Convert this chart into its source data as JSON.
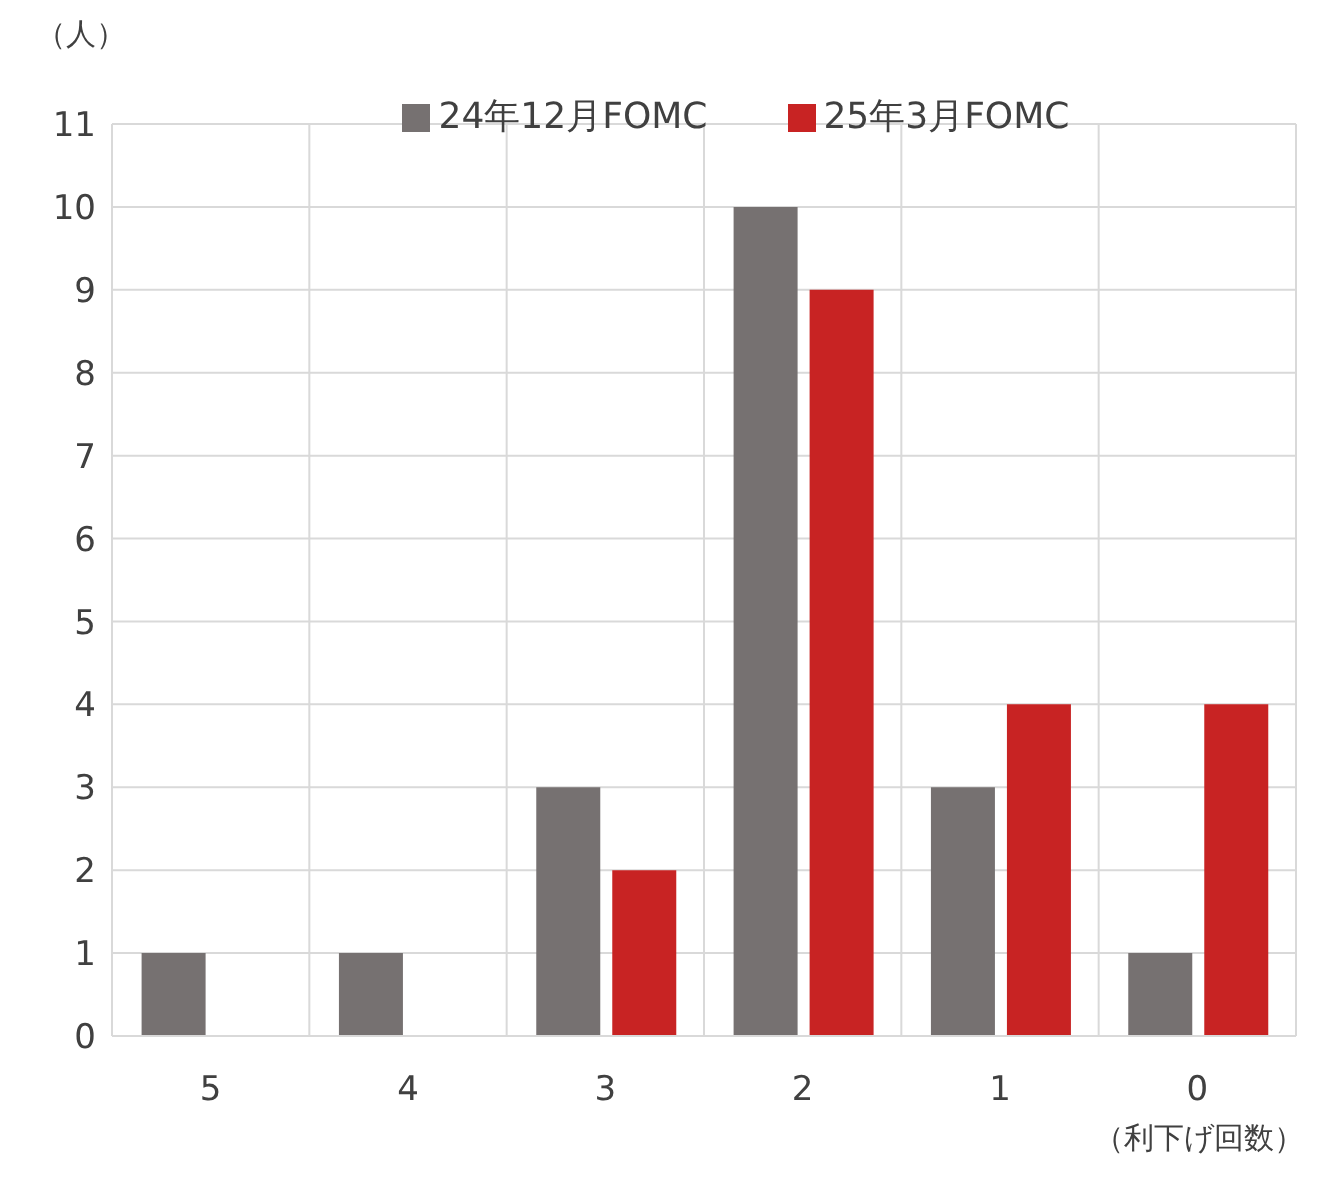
{
  "chart_data": {
    "type": "bar",
    "ylabel": "（人）",
    "xlabel": "（利下げ回数）",
    "categories": [
      "5",
      "4",
      "3",
      "2",
      "1",
      "0"
    ],
    "series": [
      {
        "name": "24年12月FOMC",
        "color": "#767171",
        "values": [
          1,
          1,
          3,
          10,
          3,
          1
        ]
      },
      {
        "name": "25年3月FOMC",
        "color": "#c82323",
        "values": [
          0,
          0,
          2,
          9,
          4,
          4
        ]
      }
    ],
    "ylim": [
      0,
      11
    ],
    "yticks": [
      0,
      1,
      2,
      3,
      4,
      5,
      6,
      7,
      8,
      9,
      10,
      11
    ],
    "grid": true,
    "legend": "top"
  }
}
